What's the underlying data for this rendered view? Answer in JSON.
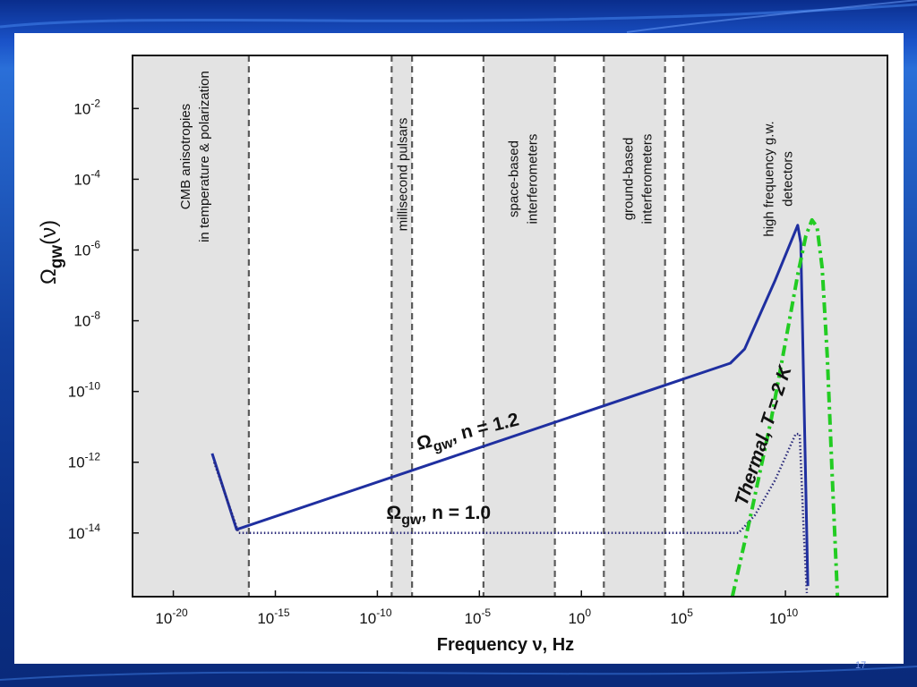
{
  "colors": {
    "slide_bg": "#1a4fc0",
    "shaded_region": "#e3e3e3",
    "n12_curve": "#1f2fa0",
    "n10_curve": "#2a2a7a",
    "thermal_curve": "#22cc22",
    "divider": "#5a5a5a"
  },
  "page_number": "17",
  "chart_data": {
    "type": "line",
    "xlabel": "Frequency ν, Hz",
    "ylabel": "Ω",
    "ylabel_sub": "gw",
    "ylabel_tail": "(ν)",
    "x_scale": "log",
    "y_scale": "log",
    "xlim_log10": [
      -22,
      15
    ],
    "ylim_log10": [
      -15.8,
      -0.5
    ],
    "x_ticks": [
      {
        "exp": -20,
        "label": "10",
        "sup": "-20"
      },
      {
        "exp": -15,
        "label": "10",
        "sup": "-15"
      },
      {
        "exp": -10,
        "label": "10",
        "sup": "-10"
      },
      {
        "exp": -5,
        "label": "10",
        "sup": "-5"
      },
      {
        "exp": 0,
        "label": "10",
        "sup": "0"
      },
      {
        "exp": 5,
        "label": "10",
        "sup": "5"
      },
      {
        "exp": 10,
        "label": "10",
        "sup": "10"
      }
    ],
    "y_ticks": [
      {
        "exp": -2,
        "label": "10",
        "sup": "-2"
      },
      {
        "exp": -4,
        "label": "10",
        "sup": "-4"
      },
      {
        "exp": -6,
        "label": "10",
        "sup": "-6"
      },
      {
        "exp": -8,
        "label": "10",
        "sup": "-8"
      },
      {
        "exp": -10,
        "label": "10",
        "sup": "-10"
      },
      {
        "exp": -12,
        "label": "10",
        "sup": "-12"
      },
      {
        "exp": -14,
        "label": "10",
        "sup": "-14"
      }
    ],
    "bands": [
      {
        "from": -22,
        "to": -16.3,
        "label": [
          "CMB anisotropies",
          "in temperature & polarization"
        ]
      },
      {
        "from": -9.3,
        "to": -8.3,
        "label": [
          "millisecond pulsars"
        ]
      },
      {
        "from": -4.8,
        "to": -1.3,
        "label": [
          "space-based",
          "interferometers"
        ]
      },
      {
        "from": 1.1,
        "to": 4.1,
        "label": [
          "ground-based",
          "interferometers"
        ]
      },
      {
        "from": 5.0,
        "to": 15,
        "label": [
          "high frequency g.w.",
          "detectors"
        ]
      }
    ],
    "dividers": [
      -16.3,
      -9.3,
      -8.3,
      -4.8,
      -1.3,
      1.1,
      4.1,
      5.0
    ],
    "series": [
      {
        "name": "Ωgw, n = 1.2",
        "style": "solid",
        "points": [
          [
            -18.1,
            -11.75
          ],
          [
            -16.9,
            -13.9
          ],
          [
            7.3,
            -9.2
          ],
          [
            8.0,
            -8.8
          ],
          [
            9.5,
            -6.85
          ],
          [
            10.6,
            -5.3
          ],
          [
            10.75,
            -5.8
          ],
          [
            11.1,
            -15.5
          ]
        ]
      },
      {
        "name": "Ωgw, n = 1.0",
        "style": "dotted",
        "points": [
          [
            -18.0,
            -12.0
          ],
          [
            -16.8,
            -14.0
          ],
          [
            -16.5,
            -14.0
          ],
          [
            7.7,
            -14.0
          ],
          [
            8.5,
            -13.5
          ],
          [
            9.5,
            -12.5
          ],
          [
            10.5,
            -11.2
          ],
          [
            10.7,
            -11.2
          ],
          [
            10.9,
            -14.0
          ],
          [
            11.05,
            -15.7
          ]
        ]
      },
      {
        "name": "Thermal, T = 2 K",
        "style": "dash-dot",
        "points": [
          [
            7.4,
            -15.8
          ],
          [
            8.3,
            -13.5
          ],
          [
            9.3,
            -10.8
          ],
          [
            10.0,
            -8.6
          ],
          [
            10.6,
            -6.7
          ],
          [
            11.0,
            -5.6
          ],
          [
            11.3,
            -5.15
          ],
          [
            11.55,
            -5.35
          ],
          [
            11.8,
            -6.5
          ],
          [
            12.05,
            -9.0
          ],
          [
            12.3,
            -12.5
          ],
          [
            12.55,
            -15.8
          ]
        ]
      }
    ],
    "annotations": [
      {
        "text_main": "Ω",
        "text_sub": "gw",
        "text_tail": ", n = 1.2",
        "at": [
          -5.5,
          -11.3
        ],
        "rotate": -14
      },
      {
        "text_main": "Ω",
        "text_sub": "gw",
        "text_tail": ", n = 1.0",
        "at": [
          -7.0,
          -13.6
        ],
        "rotate": 0
      },
      {
        "text_main": "Thermal, T = 2 K",
        "at": [
          9.2,
          -11.3
        ],
        "rotate": -72,
        "style": "italic"
      }
    ],
    "grid": false,
    "legend": "none"
  }
}
